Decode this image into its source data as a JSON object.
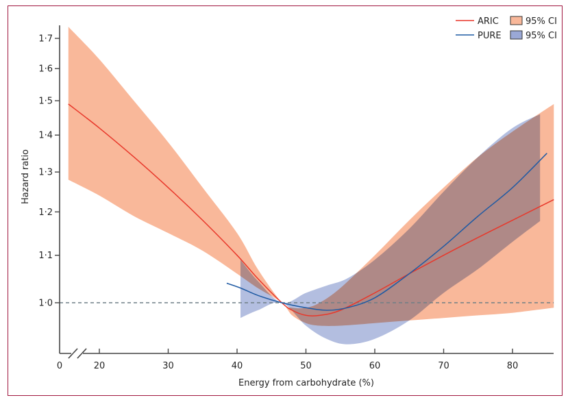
{
  "chart_data": {
    "type": "line",
    "title": "",
    "xlabel": "Energy from carbohydrate (%)",
    "ylabel": "Hazard ratio",
    "xlim": [
      0,
      86
    ],
    "x_axis_break": "between 0 and 20",
    "x_ticks": [
      0,
      20,
      30,
      40,
      50,
      60,
      70,
      80
    ],
    "x_tick_labels": [
      "0",
      "20",
      "30",
      "40",
      "50",
      "60",
      "70",
      "80"
    ],
    "y_scale": "log",
    "ylim": [
      0.9,
      1.75
    ],
    "y_ticks": [
      1.0,
      1.1,
      1.2,
      1.3,
      1.4,
      1.5,
      1.6,
      1.7
    ],
    "y_tick_labels": [
      "1·0",
      "1·1",
      "1·2",
      "1·3",
      "1·4",
      "1·5",
      "1·6",
      "1·7"
    ],
    "reference_line": {
      "y": 1.0,
      "style": "dashed"
    },
    "legend": {
      "position": "top-right",
      "entries": [
        {
          "label": "ARIC",
          "type": "line",
          "color": "#e8372a"
        },
        {
          "label": "95% CI",
          "type": "band",
          "color": "#f9b89a"
        },
        {
          "label": "PURE",
          "type": "line",
          "color": "#1f5aa3"
        },
        {
          "label": "95% CI",
          "type": "band",
          "color": "#9aa8d6"
        }
      ]
    },
    "series": [
      {
        "name": "ARIC",
        "color": "#e8372a",
        "band_color": "#f9b89a",
        "x": [
          15.5,
          20,
          25,
          30,
          35,
          40,
          43,
          46.5,
          48,
          50,
          52,
          55,
          60,
          65,
          70,
          75,
          80,
          86
        ],
        "y": [
          1.49,
          1.42,
          1.34,
          1.26,
          1.18,
          1.1,
          1.05,
          1.0,
          0.985,
          0.975,
          0.975,
          0.985,
          1.02,
          1.06,
          1.1,
          1.14,
          1.18,
          1.23
        ],
        "lower": [
          1.28,
          1.24,
          1.19,
          1.15,
          1.11,
          1.06,
          1.03,
          1.0,
          0.975,
          0.96,
          0.955,
          0.955,
          0.96,
          0.965,
          0.97,
          0.975,
          0.98,
          0.99
        ],
        "upper": [
          1.74,
          1.63,
          1.5,
          1.38,
          1.26,
          1.15,
          1.07,
          1.0,
          0.99,
          0.99,
          1.0,
          1.03,
          1.1,
          1.18,
          1.26,
          1.34,
          1.41,
          1.49
        ]
      },
      {
        "name": "PURE",
        "color": "#1f5aa3",
        "band_color": "#9aa8d6",
        "x": [
          38.5,
          40.5,
          43,
          46.5,
          50,
          53,
          56,
          60,
          65,
          70,
          75,
          80,
          85
        ],
        "y": [
          1.04,
          1.03,
          1.015,
          1.0,
          0.99,
          0.985,
          0.99,
          1.01,
          1.06,
          1.12,
          1.19,
          1.26,
          1.35
        ],
        "lower": [
          null,
          0.97,
          0.985,
          1.0,
          0.955,
          0.93,
          0.92,
          0.93,
          0.965,
          1.02,
          1.07,
          1.13,
          1.19
        ],
        "upper": [
          null,
          1.09,
          1.045,
          1.0,
          1.02,
          1.035,
          1.05,
          1.09,
          1.16,
          1.25,
          1.34,
          1.42,
          1.47
        ],
        "band_x_range": [
          40.5,
          84
        ]
      }
    ]
  }
}
